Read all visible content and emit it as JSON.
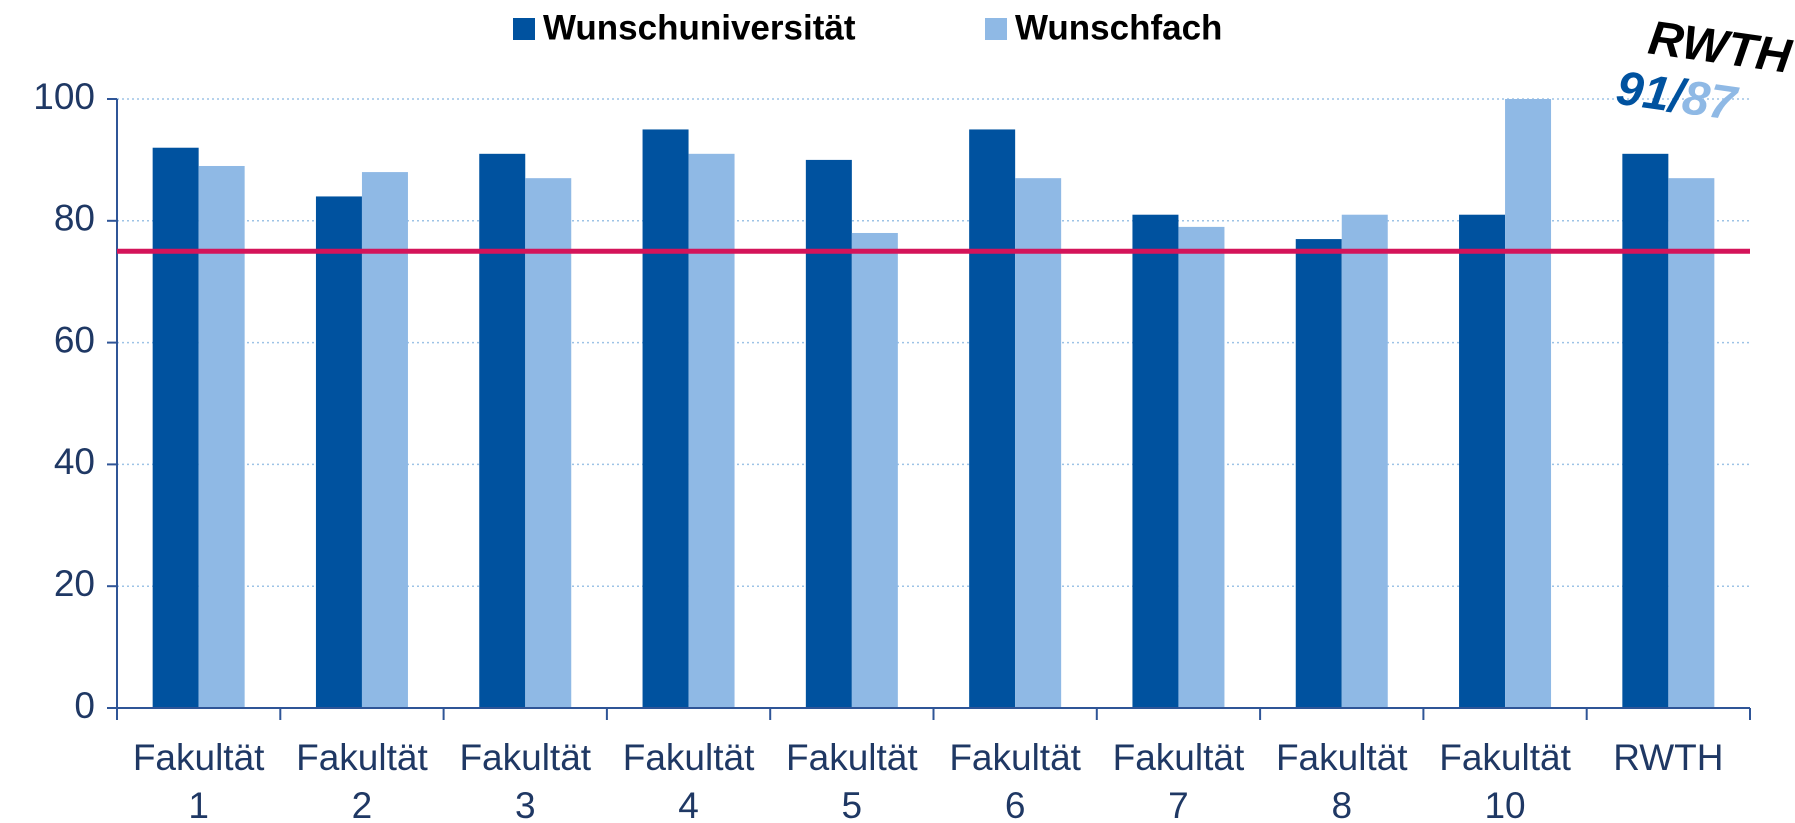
{
  "chart_data": {
    "type": "bar",
    "categories": [
      "Fakultät 1",
      "Fakultät 2",
      "Fakultät 3",
      "Fakultät 4",
      "Fakultät 5",
      "Fakultät 6",
      "Fakultät 7",
      "Fakultät 8",
      "Fakultät 10",
      "RWTH"
    ],
    "series": [
      {
        "name": "Wunschuniversität",
        "color": "#00529f",
        "values": [
          92,
          84,
          91,
          95,
          90,
          95,
          81,
          77,
          81,
          91
        ]
      },
      {
        "name": "Wunschfach",
        "color": "#8fb9e5",
        "values": [
          89,
          88,
          87,
          91,
          78,
          87,
          79,
          81,
          100,
          87
        ]
      }
    ],
    "reference_line": {
      "value": 75,
      "color": "#d4145a"
    },
    "annotation": {
      "label": "RWTH",
      "uni": 91,
      "separator": "/",
      "fach": 87
    },
    "ylim": [
      0,
      100
    ],
    "yticks": [
      0,
      20,
      40,
      60,
      80,
      100
    ],
    "grid": true,
    "legend": "top"
  }
}
